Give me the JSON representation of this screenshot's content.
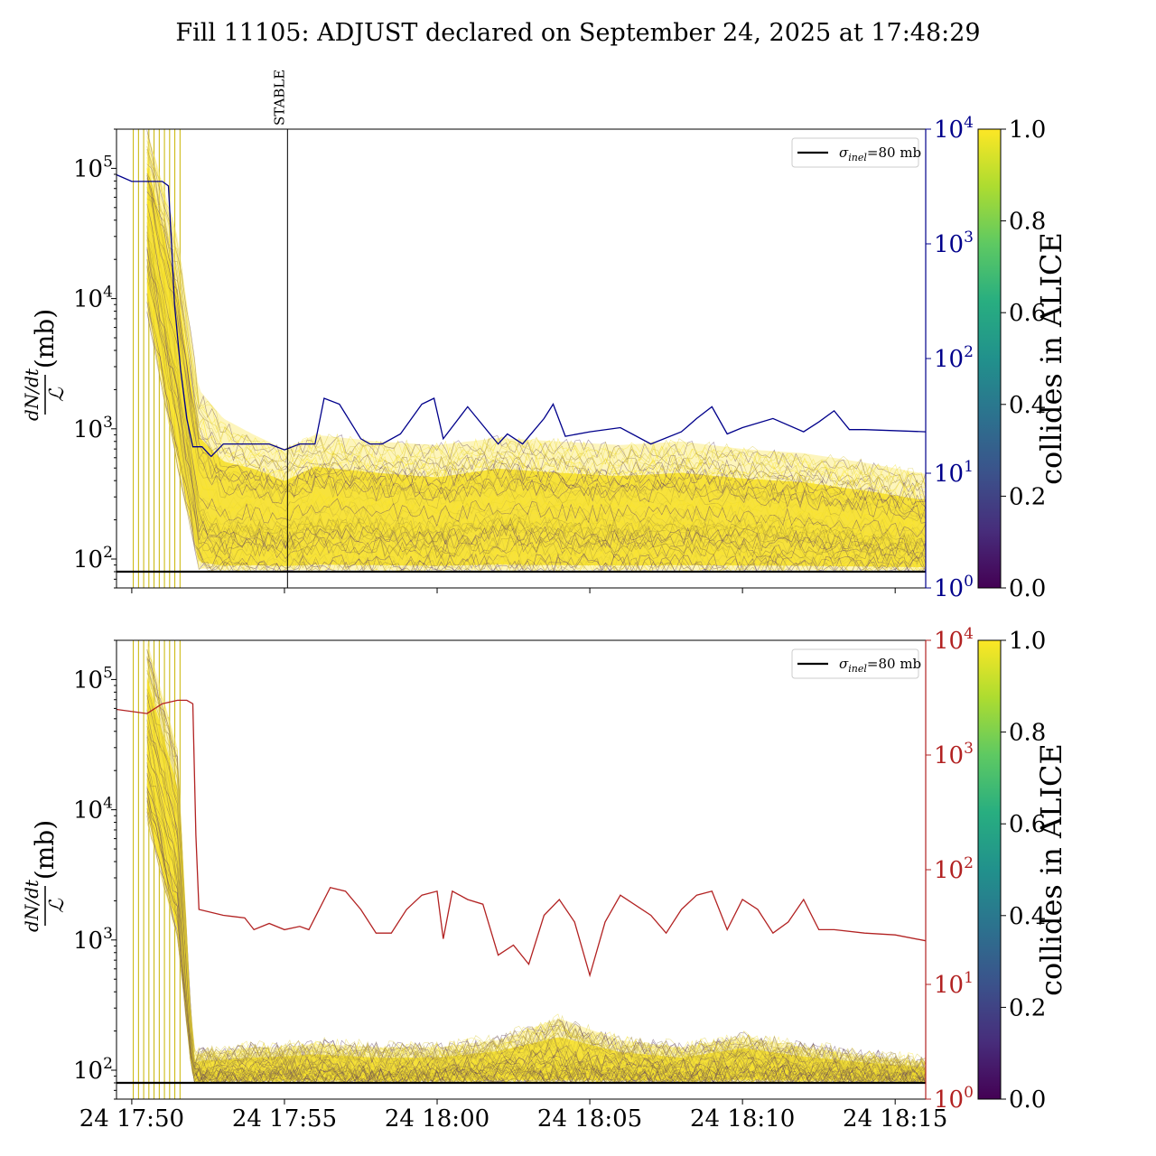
{
  "chart_data": [
    {
      "type": "line",
      "title": "Fill 11105: ADJUST declared on September 24, 2025 at 17:48:29",
      "ylabel_fraction_top": "dN/dt",
      "ylabel_fraction_bottom": "ℒ",
      "ylabel_unit": "(mb)",
      "yscale": "log",
      "ylim": [
        60,
        200000
      ],
      "yticks": [
        {
          "base": "10",
          "exp": "2",
          "v": 100
        },
        {
          "base": "10",
          "exp": "3",
          "v": 1000
        },
        {
          "base": "10",
          "exp": "4",
          "v": 10000
        },
        {
          "base": "10",
          "exp": "5",
          "v": 100000
        }
      ],
      "y2scale": "log",
      "y2lim": [
        1,
        10000
      ],
      "y2ticks": [
        {
          "base": "10",
          "exp": "0",
          "v": 1
        },
        {
          "base": "10",
          "exp": "1",
          "v": 10
        },
        {
          "base": "10",
          "exp": "2",
          "v": 100
        },
        {
          "base": "10",
          "exp": "3",
          "v": 1000
        },
        {
          "base": "10",
          "exp": "4",
          "v": 10000
        }
      ],
      "y2color": "#00008b",
      "xlim_minutes_after_17_50": [
        -0.5,
        26.0
      ],
      "annotation": {
        "label": "STABLE",
        "x_minute": 5.1
      },
      "legend": {
        "position": "top-right",
        "entry": "σinel=80 mb",
        "symbol": "σ",
        "sub": "inel",
        "rest": "=80 mb"
      },
      "reference_line": {
        "name": "σinel=80 mb",
        "value": 80
      },
      "colorbar": {
        "label": "collides in ALICE",
        "range": [
          0.0,
          1.0
        ],
        "ticks": [
          "0.0",
          "0.2",
          "0.4",
          "0.6",
          "0.8",
          "1.0"
        ]
      },
      "band": {
        "x_min": [
          0.5,
          1.5,
          2.2,
          3.0,
          4.0,
          5.0,
          6.0,
          8.0,
          10.0,
          12.0,
          14.0,
          16.0,
          18.0,
          20.0,
          22.0,
          24.0,
          26.0
        ],
        "low": [
          8000,
          500,
          85,
          82,
          82,
          82,
          82,
          82,
          82,
          82,
          82,
          82,
          82,
          82,
          82,
          82,
          82
        ],
        "mid": [
          40000,
          3000,
          250,
          180,
          200,
          170,
          220,
          200,
          180,
          220,
          200,
          190,
          200,
          190,
          180,
          160,
          140
        ],
        "high": [
          200000,
          30000,
          2000,
          1200,
          900,
          700,
          900,
          800,
          750,
          850,
          800,
          750,
          800,
          700,
          650,
          550,
          450
        ]
      },
      "series_right": {
        "x_min": [
          -0.5,
          0.0,
          1.0,
          1.2,
          1.3,
          1.4,
          1.6,
          1.8,
          2.0,
          2.3,
          2.6,
          3.0,
          3.5,
          4.0,
          4.5,
          5.0,
          5.5,
          6.0,
          6.3,
          6.8,
          7.5,
          7.8,
          8.2,
          8.8,
          9.5,
          9.9,
          10.2,
          11.0,
          12.0,
          12.3,
          12.8,
          13.5,
          13.8,
          14.2,
          15.0,
          16.0,
          17.0,
          18.0,
          18.5,
          19.0,
          19.5,
          20.0,
          21.0,
          22.0,
          22.5,
          23.0,
          23.5,
          24.0,
          26.0
        ],
        "values": [
          4000,
          3500,
          3500,
          3200,
          1000,
          300,
          80,
          30,
          17,
          17,
          14,
          18,
          18,
          18,
          18,
          16,
          18,
          18,
          45,
          40,
          20,
          18,
          18,
          22,
          40,
          45,
          20,
          38,
          18,
          22,
          18,
          30,
          40,
          21,
          23,
          25,
          18,
          23,
          30,
          38,
          22,
          25,
          30,
          23,
          28,
          35,
          24,
          24,
          23
        ]
      }
    },
    {
      "type": "line",
      "ylabel_fraction_top": "dN/dt",
      "ylabel_fraction_bottom": "ℒ",
      "ylabel_unit": "(mb)",
      "yscale": "log",
      "ylim": [
        60,
        200000
      ],
      "yticks": [
        {
          "base": "10",
          "exp": "2",
          "v": 100
        },
        {
          "base": "10",
          "exp": "3",
          "v": 1000
        },
        {
          "base": "10",
          "exp": "4",
          "v": 10000
        },
        {
          "base": "10",
          "exp": "5",
          "v": 100000
        }
      ],
      "y2scale": "log",
      "y2lim": [
        1,
        10000
      ],
      "y2ticks": [
        {
          "base": "10",
          "exp": "0",
          "v": 1
        },
        {
          "base": "10",
          "exp": "1",
          "v": 10
        },
        {
          "base": "10",
          "exp": "2",
          "v": 100
        },
        {
          "base": "10",
          "exp": "3",
          "v": 1000
        },
        {
          "base": "10",
          "exp": "4",
          "v": 10000
        }
      ],
      "y2color": "#b22222",
      "xlim_minutes_after_17_50": [
        -0.5,
        26.0
      ],
      "xticks": [
        {
          "label": "24 17:50",
          "m": 0
        },
        {
          "label": "24 17:55",
          "m": 5
        },
        {
          "label": "24 18:00",
          "m": 10
        },
        {
          "label": "24 18:05",
          "m": 15
        },
        {
          "label": "24 18:10",
          "m": 20
        },
        {
          "label": "24 18:15",
          "m": 25
        }
      ],
      "legend": {
        "position": "top-right",
        "entry": "σinel=80 mb",
        "symbol": "σ",
        "sub": "inel",
        "rest": "=80 mb"
      },
      "reference_line": {
        "name": "σinel=80 mb",
        "value": 80
      },
      "colorbar": {
        "label": "collides in ALICE",
        "range": [
          0.0,
          1.0
        ],
        "ticks": [
          "0.0",
          "0.2",
          "0.4",
          "0.6",
          "0.8",
          "1.0"
        ]
      },
      "band": {
        "x_min": [
          0.5,
          1.5,
          2.0,
          2.5,
          3.0,
          4.0,
          5.0,
          6.0,
          8.0,
          10.0,
          12.0,
          14.0,
          16.0,
          18.0,
          20.0,
          22.0,
          24.0,
          26.0
        ],
        "low": [
          8000,
          1000,
          82,
          82,
          82,
          82,
          82,
          82,
          82,
          82,
          82,
          82,
          82,
          82,
          82,
          82,
          82,
          82
        ],
        "mid": [
          40000,
          5000,
          95,
          95,
          95,
          95,
          100,
          100,
          95,
          95,
          105,
          110,
          100,
          95,
          110,
          100,
          95,
          92
        ],
        "high": [
          200000,
          30000,
          130,
          140,
          140,
          150,
          150,
          160,
          150,
          150,
          170,
          250,
          170,
          150,
          180,
          150,
          130,
          115
        ]
      },
      "series_right": {
        "x_min": [
          -0.5,
          0.5,
          1.0,
          1.5,
          1.8,
          2.0,
          2.1,
          2.2,
          3.0,
          3.7,
          4.0,
          4.5,
          5.0,
          5.5,
          5.8,
          6.5,
          7.0,
          7.5,
          8.0,
          8.5,
          9.0,
          9.5,
          10.0,
          10.2,
          10.5,
          11.0,
          11.5,
          12.0,
          12.5,
          13.0,
          13.5,
          14.0,
          14.5,
          15.0,
          15.5,
          16.0,
          17.0,
          17.5,
          18.0,
          18.5,
          19.0,
          19.5,
          20.0,
          20.5,
          21.0,
          21.5,
          22.0,
          22.5,
          23.0,
          24.0,
          25.0,
          26.0
        ],
        "values": [
          2500,
          2300,
          2800,
          3000,
          3000,
          2800,
          200,
          45,
          40,
          38,
          30,
          34,
          30,
          32,
          30,
          70,
          65,
          45,
          28,
          28,
          45,
          60,
          65,
          25,
          65,
          55,
          50,
          18,
          22,
          15,
          40,
          55,
          35,
          12,
          35,
          60,
          40,
          28,
          45,
          60,
          65,
          30,
          55,
          45,
          28,
          35,
          55,
          30,
          30,
          28,
          27,
          24
        ]
      }
    }
  ]
}
